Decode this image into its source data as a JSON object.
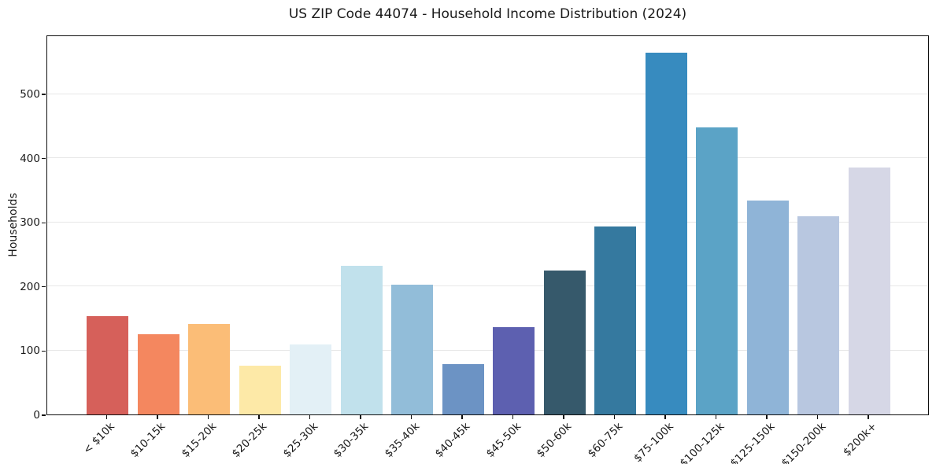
{
  "chart_data": {
    "type": "bar",
    "title": "US ZIP Code 44074 - Household Income Distribution (2024)",
    "xlabel": "",
    "ylabel": "Households",
    "categories": [
      "< $10k",
      "$10-15k",
      "$15-20k",
      "$20-25k",
      "$25-30k",
      "$30-35k",
      "$35-40k",
      "$40-45k",
      "$45-50k",
      "$50-60k",
      "$60-75k",
      "$75-100k",
      "$100-125k",
      "$125-150k",
      "$150-200k",
      "$200k+"
    ],
    "values": [
      153,
      125,
      141,
      76,
      109,
      232,
      202,
      78,
      136,
      224,
      293,
      564,
      448,
      333,
      309,
      385
    ],
    "bar_colors": [
      "#d6605a",
      "#f4875f",
      "#fbbd77",
      "#fde9a7",
      "#e3f0f6",
      "#c1e1ec",
      "#92bdd9",
      "#6c93c4",
      "#5d60b0",
      "#36596b",
      "#35799f",
      "#378bbf",
      "#5ba3c6",
      "#8fb4d7",
      "#b8c7e0",
      "#d6d7e6"
    ],
    "yticks": [
      0,
      100,
      200,
      300,
      400,
      500
    ],
    "ylim": [
      0,
      592
    ],
    "grid": "horizontal",
    "legend": "none"
  },
  "styles": {
    "background": "#ffffff",
    "grid_color": "#e7e7e7",
    "spine_color": "#0f0f0f",
    "text_color": "#1a1a1a"
  }
}
